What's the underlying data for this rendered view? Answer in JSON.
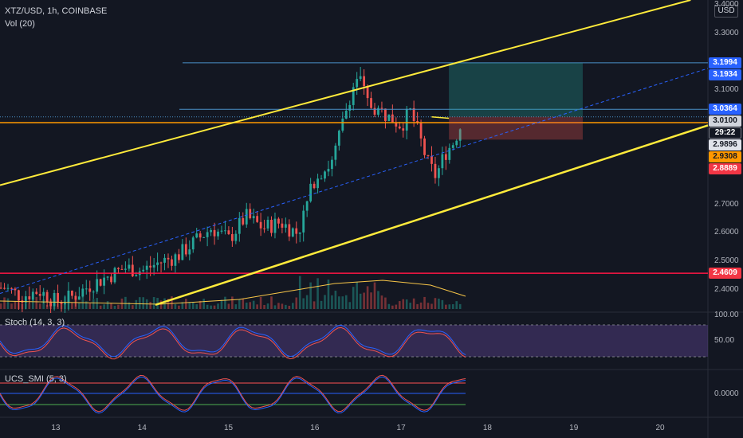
{
  "header": {
    "symbol": "XTZ/USD, 1h, COINBASE",
    "volume": "Vol (20)"
  },
  "currency_button": "USD",
  "indicators": {
    "stoch": {
      "label": "Stoch (14, 3, 3)",
      "ticks": [
        "100.00",
        "50.00"
      ]
    },
    "smi": {
      "label": "UCS_SMI (5, 3)",
      "ticks": [
        "0.0000"
      ]
    }
  },
  "price_ticks": [
    "3.4000",
    "3.3000",
    "3.1000",
    "2.7000",
    "2.6000",
    "2.5000",
    "2.4000"
  ],
  "price_labels": [
    {
      "text": "3.1994",
      "bg": "#2962ff",
      "fg": "#ffffff",
      "value": 3.1994
    },
    {
      "text": "3.1934",
      "bg": "#2962ff",
      "fg": "#ffffff",
      "value": 3.1934
    },
    {
      "text": "3.0364",
      "bg": "#2962ff",
      "fg": "#ffffff",
      "value": 3.0364
    },
    {
      "text": "3.0100",
      "bg": "#d1d4dc",
      "fg": "#131722",
      "value": 3.01
    },
    {
      "text": "29:22",
      "bg": "#131722",
      "fg": "#ffffff",
      "value": 2.9896,
      "border": true
    },
    {
      "text": "2.9896",
      "bg": "#e0e3eb",
      "fg": "#131722",
      "value": 2.9896
    },
    {
      "text": "2.9308",
      "bg": "#ff9800",
      "fg": "#131722",
      "value": 2.9308
    },
    {
      "text": "2.8889",
      "bg": "#f23645",
      "fg": "#ffffff",
      "value": 2.8889
    },
    {
      "text": "2.4609",
      "bg": "#f23645",
      "fg": "#ffffff",
      "value": 2.4609
    }
  ],
  "x_axis": [
    "13",
    "14",
    "15",
    "16",
    "17",
    "18",
    "19",
    "20"
  ],
  "colors": {
    "up": "#26a69a",
    "down": "#ef5350",
    "channel": "#ffeb3b",
    "support": "#ff1744",
    "orange": "#ff9800"
  },
  "chart_data": {
    "type": "line",
    "title": "XTZ/USD, 1h, COINBASE",
    "ylim": [
      2.33,
      3.42
    ],
    "x_range": [
      12.35,
      20.55
    ],
    "series": [
      {
        "name": "close",
        "x": [
          12.4,
          12.6,
          12.8,
          13.0,
          13.2,
          13.4,
          13.6,
          13.8,
          14.0,
          14.2,
          14.4,
          14.6,
          14.8,
          15.0,
          15.2,
          15.4,
          15.6,
          15.8,
          16.0,
          16.2,
          16.4,
          16.5,
          16.6,
          16.8,
          17.0,
          17.1,
          17.2,
          17.3,
          17.4,
          17.5,
          17.6,
          17.7
        ],
        "values": [
          2.41,
          2.38,
          2.4,
          2.36,
          2.38,
          2.42,
          2.45,
          2.48,
          2.47,
          2.5,
          2.52,
          2.57,
          2.62,
          2.58,
          2.66,
          2.62,
          2.64,
          2.6,
          2.8,
          2.85,
          3.08,
          3.16,
          3.06,
          3.02,
          2.98,
          3.03,
          2.95,
          2.85,
          2.8,
          2.88,
          2.92,
          2.99
        ]
      }
    ],
    "horizontal_levels": [
      3.1994,
      3.0364,
      3.01,
      2.9896,
      2.4609
    ],
    "channel_lines": [
      {
        "x": [
          12.35,
          20.35
        ],
        "values": [
          2.77,
          3.42
        ]
      },
      {
        "x": [
          14.15,
          20.55
        ],
        "values": [
          2.35,
          2.98
        ]
      },
      {
        "x": [
          12.35,
          20.55
        ],
        "values": [
          2.39,
          3.18
        ]
      }
    ]
  }
}
